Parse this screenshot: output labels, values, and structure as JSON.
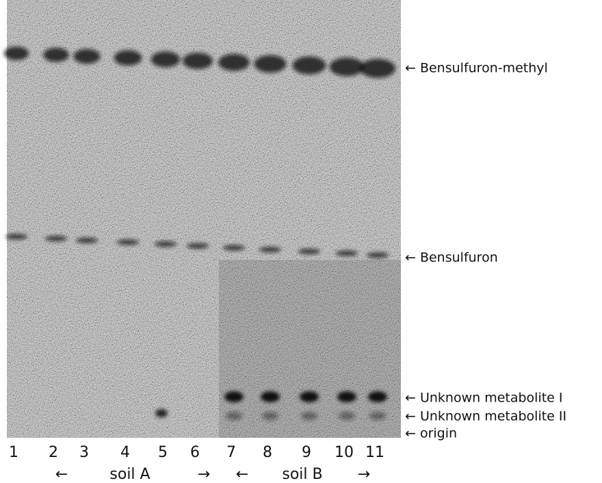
{
  "band_labels": [
    "← Bensulfuron-methyl",
    "← Bensulfuron",
    "← Unknown metabolite  I",
    "← Unknown metabolite  II",
    "← origin"
  ],
  "lanes": [
    "1",
    "2",
    "3",
    "4",
    "5",
    "6",
    "7",
    "8",
    "9",
    "10",
    "11"
  ],
  "groups": [
    {
      "left_arrow": "←",
      "label": "soil A",
      "right_arrow": "→"
    },
    {
      "left_arrow": "←",
      "label": "soil B",
      "right_arrow": "→"
    }
  ]
}
